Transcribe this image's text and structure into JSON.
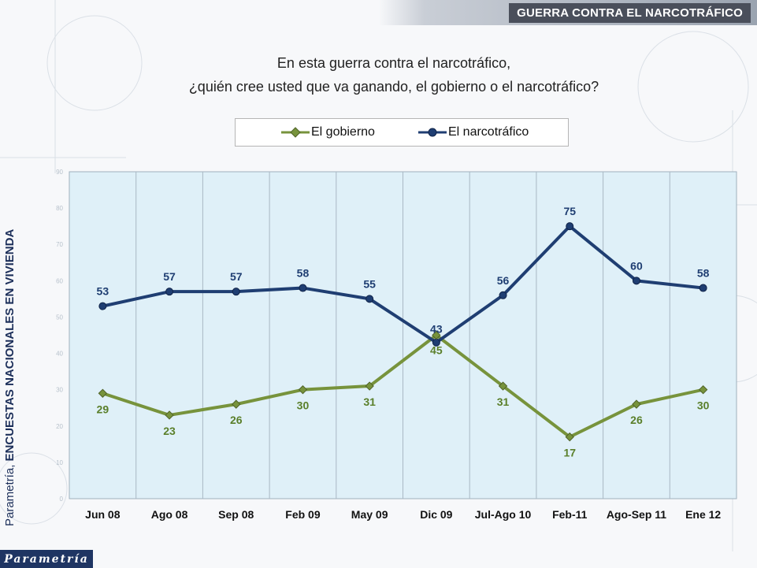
{
  "header": {
    "title": "GUERRA CONTRA EL NARCOTRÁFICO"
  },
  "question": {
    "line1": "En esta guerra contra el narcotráfico,",
    "line2": "¿quién cree usted que va ganando, el gobierno o el narcotráfico?"
  },
  "side_label": {
    "prefix": "Parametría, ",
    "emphasis": "ENCUESTAS NACIONALES EN VIVIENDA"
  },
  "logo": {
    "text": "Parametría"
  },
  "colors": {
    "gobierno": "#77933c",
    "narcotrafico": "#1f3e72",
    "plot_bg": "#dff0f8"
  },
  "chart_data": {
    "type": "line",
    "categories": [
      "Jun 08",
      "Ago 08",
      "Sep 08",
      "Feb 09",
      "May 09",
      "Dic 09",
      "Jul-Ago 10",
      "Feb-11",
      "Ago-Sep 11",
      "Ene 12"
    ],
    "series": [
      {
        "name": "El gobierno",
        "values": [
          29,
          23,
          26,
          30,
          31,
          45,
          31,
          17,
          26,
          30
        ]
      },
      {
        "name": "El narcotráfico",
        "values": [
          53,
          57,
          57,
          58,
          55,
          43,
          56,
          75,
          60,
          58
        ]
      }
    ],
    "ylim": [
      0,
      90
    ],
    "y_ticks": [
      0,
      10,
      20,
      30,
      40,
      50,
      60,
      70,
      80,
      90
    ],
    "legend": "top",
    "grid": "vertical",
    "title": "",
    "xlabel": "",
    "ylabel": ""
  }
}
